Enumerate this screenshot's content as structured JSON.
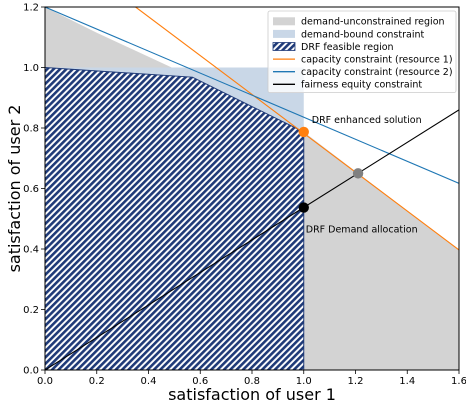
{
  "chart_data": {
    "type": "area",
    "xlabel": "satisfaction of user 1",
    "ylabel": "satisfaction of user 2",
    "xlim": [
      0.0,
      1.6
    ],
    "ylim": [
      0.0,
      1.2
    ],
    "x_ticks": [
      "0.0",
      "0.2",
      "0.4",
      "0.6",
      "0.8",
      "1.0",
      "1.2",
      "1.4",
      "1.6"
    ],
    "y_ticks": [
      "0.0",
      "0.2",
      "0.4",
      "0.6",
      "0.8",
      "1.0",
      "1.2"
    ],
    "legend_position": "top-right",
    "grid": false,
    "regions": [
      {
        "name": "demand-unconstrained region",
        "color": "#d3d3d3",
        "polygon": [
          [
            0,
            0
          ],
          [
            0,
            1.2
          ],
          [
            0.2,
            1.115
          ],
          [
            0.57,
            0.968
          ],
          [
            1.0,
            0.787
          ],
          [
            1.6,
            0.397
          ],
          [
            1.6,
            0
          ]
        ]
      },
      {
        "name": "demand-bound constraint",
        "color": "#c9d7e7",
        "polygon": [
          [
            0,
            0
          ],
          [
            0,
            1.0
          ],
          [
            1.0,
            1.0
          ],
          [
            1.0,
            0
          ]
        ]
      },
      {
        "name": "DRF feasible region",
        "color": "#1f3a78",
        "hatched": true,
        "polygon": [
          [
            0,
            0
          ],
          [
            0,
            1.0
          ],
          [
            0.57,
            0.968
          ],
          [
            0.8,
            0.871
          ],
          [
            1.0,
            0.787
          ],
          [
            1.0,
            0
          ]
        ]
      }
    ],
    "lines": [
      {
        "name": "capacity constraint (resource 1)",
        "color": "#ff7f0e",
        "points": [
          [
            0.35,
            1.2
          ],
          [
            1.6,
            0.397
          ]
        ]
      },
      {
        "name": "capacity constraint (resource 2)",
        "color": "#1f77b4",
        "points": [
          [
            0,
            1.2
          ],
          [
            1.6,
            0.617
          ]
        ]
      },
      {
        "name": "fairness equity constraint",
        "color": "#000000",
        "points": [
          [
            0,
            0
          ],
          [
            1.6,
            0.86
          ]
        ]
      }
    ],
    "points": [
      {
        "label": "DRF enhanced solution",
        "x": 1.0,
        "y": 0.787,
        "color": "#ff7f0e"
      },
      {
        "label": "",
        "x": 1.21,
        "y": 0.65,
        "color": "#808080"
      },
      {
        "label": "DRF Demand allocation",
        "x": 1.0,
        "y": 0.537,
        "color": "#000000"
      }
    ]
  }
}
